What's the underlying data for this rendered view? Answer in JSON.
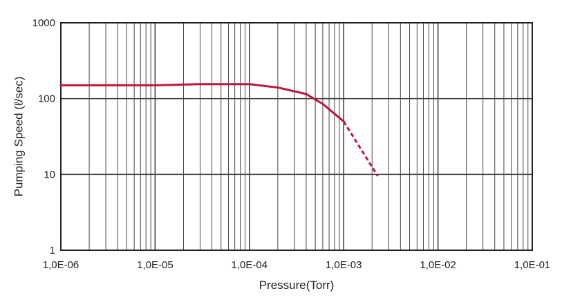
{
  "chart_data": {
    "type": "line",
    "xscale": "log",
    "yscale": "log",
    "xlim": [
      1e-06,
      0.1
    ],
    "ylim": [
      1,
      1000
    ],
    "xlabel": "Pressure(Torr)",
    "ylabel": "Pumping Speed (ℓ/sec)",
    "x_tick_labels": [
      "1,0E-06",
      "1,0E-05",
      "1,0E-04",
      "1,0E-03",
      "1,0E-02",
      "1,0E-01"
    ],
    "y_tick_labels": [
      "1",
      "10",
      "100",
      "1000"
    ],
    "grid": true,
    "line_color": "#c0143c",
    "series": [
      {
        "style": "solid",
        "points": [
          {
            "x": 1e-06,
            "y": 150
          },
          {
            "x": 1e-05,
            "y": 150
          },
          {
            "x": 3e-05,
            "y": 155
          },
          {
            "x": 0.0001,
            "y": 155
          },
          {
            "x": 0.0002,
            "y": 140
          },
          {
            "x": 0.0004,
            "y": 115
          },
          {
            "x": 0.0006,
            "y": 85
          },
          {
            "x": 0.001,
            "y": 50
          }
        ]
      },
      {
        "style": "dashed",
        "points": [
          {
            "x": 0.001,
            "y": 50
          },
          {
            "x": 0.0023,
            "y": 9.5
          }
        ]
      }
    ]
  }
}
